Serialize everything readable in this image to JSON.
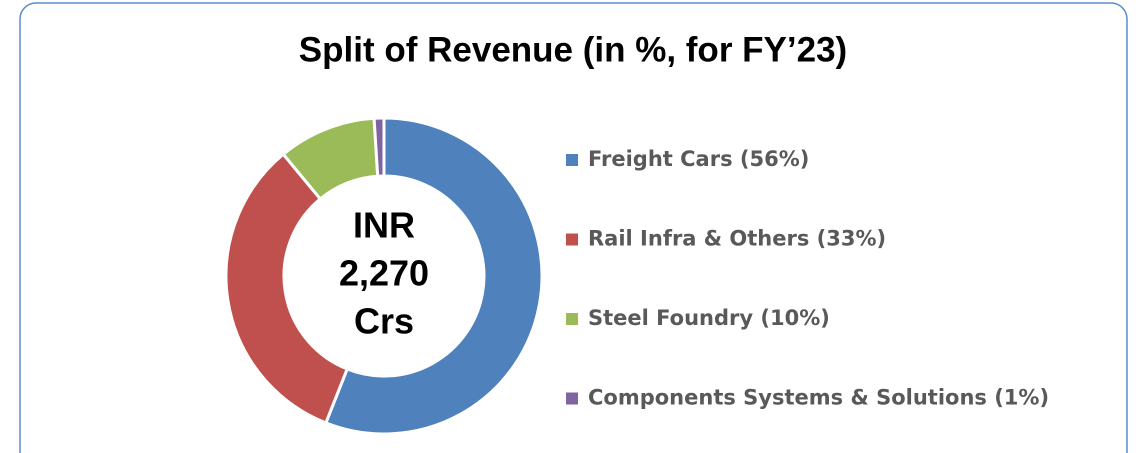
{
  "chart_data": {
    "type": "donut",
    "title": "Split of Revenue (in %, for FY’23)",
    "center_label": [
      "INR",
      "2,270",
      "Crs"
    ],
    "categories": [
      "Freight Cars (56%)",
      "Rail Infra & Others (33%)",
      "Steel Foundry (10%)",
      "Components Systems & Solutions (1%)"
    ],
    "values": [
      56,
      33,
      10,
      1
    ],
    "colors": [
      "#4f81bd",
      "#c0504d",
      "#9bbb59",
      "#8064a2"
    ],
    "legend": "right"
  }
}
